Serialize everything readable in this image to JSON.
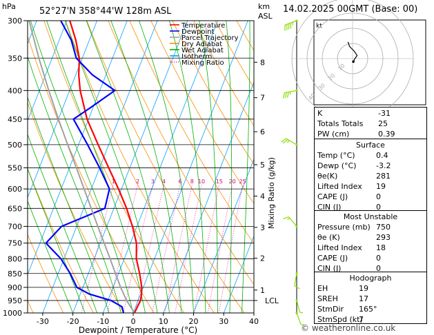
{
  "header": {
    "pressure_unit": "hPa",
    "location": "52°27'N 358°44'W 128m ASL",
    "km_label": "km",
    "asl_label": "ASL",
    "date": "14.02.2025 00GMT (Base: 00)"
  },
  "legend": [
    {
      "label": "Temperature",
      "color": "#ff0000",
      "style": "solid"
    },
    {
      "label": "Dewpoint",
      "color": "#0000ff",
      "style": "solid"
    },
    {
      "label": "Parcel Trajectory",
      "color": "#a0a0a0",
      "style": "solid"
    },
    {
      "label": "Dry Adiabat",
      "color": "#ff8c00",
      "style": "solid"
    },
    {
      "label": "Wet Adiabat",
      "color": "#00b000",
      "style": "solid"
    },
    {
      "label": "Isotherm",
      "color": "#00a0ff",
      "style": "solid"
    },
    {
      "label": "Mixing Ratio",
      "color": "#ff00a0",
      "style": "dotted"
    }
  ],
  "chart_data": {
    "type": "line",
    "title": "52°27'N 358°44'W 128m ASL",
    "xlabel": "Dewpoint / Temperature (°C)",
    "ylabel": "hPa",
    "y2label": "Mixing Ratio (g/kg)",
    "xlim": [
      -35,
      40
    ],
    "ylim": [
      1000,
      300
    ],
    "y_scale": "log",
    "x_ticks": [
      -30,
      -20,
      -10,
      0,
      10,
      20,
      30,
      40
    ],
    "pressure_ticks": [
      300,
      350,
      400,
      450,
      500,
      550,
      600,
      650,
      700,
      750,
      800,
      850,
      900,
      950,
      1000
    ],
    "km_ticks": [
      {
        "km": "1",
        "p": 910
      },
      {
        "km": "2",
        "p": 798
      },
      {
        "km": "3",
        "p": 703
      },
      {
        "km": "4",
        "p": 618
      },
      {
        "km": "5",
        "p": 543
      },
      {
        "km": "6",
        "p": 474
      },
      {
        "km": "7",
        "p": 412
      },
      {
        "km": "8",
        "p": 356
      }
    ],
    "lcl_label": "LCL",
    "lcl_p": 950,
    "mixing_ratio_labels": [
      "1",
      "2",
      "3",
      "4",
      "6",
      "8",
      "10",
      "15",
      "20",
      "25"
    ],
    "mixing_ratio_label_p": 590,
    "series": [
      {
        "name": "Temperature",
        "color": "#ff0000",
        "p": [
          1000,
          975,
          950,
          925,
          900,
          850,
          800,
          750,
          700,
          650,
          600,
          550,
          500,
          450,
          400,
          375,
          350,
          325,
          300
        ],
        "t": [
          0.4,
          0.6,
          0.8,
          0.3,
          -0.5,
          -3.0,
          -6.0,
          -8.0,
          -11.5,
          -15.8,
          -21.0,
          -27.0,
          -33.5,
          -40.5,
          -46.5,
          -49.0,
          -51.0,
          -54.5,
          -59.0
        ]
      },
      {
        "name": "Dewpoint",
        "color": "#0000ff",
        "p": [
          1000,
          975,
          950,
          925,
          900,
          850,
          800,
          750,
          700,
          650,
          600,
          550,
          500,
          450,
          430,
          400,
          375,
          350,
          325,
          300
        ],
        "t": [
          -3.2,
          -4.5,
          -9.0,
          -17.0,
          -22.0,
          -26.0,
          -31.0,
          -38.0,
          -35.0,
          -23.0,
          -24.0,
          -30.0,
          -37.0,
          -45.0,
          -41.0,
          -35.0,
          -44.5,
          -52.0,
          -56.0,
          -62.0
        ]
      },
      {
        "name": "Parcel Trajectory",
        "color": "#a0a0a0",
        "p": [
          1000,
          950,
          900,
          850,
          800,
          750,
          700,
          650,
          600,
          550,
          500,
          450,
          400,
          350,
          300
        ],
        "t": [
          0.4,
          -3.8,
          -7.5,
          -11.0,
          -14.7,
          -18.7,
          -23.0,
          -27.5,
          -32.4,
          -37.7,
          -43.6,
          -50.0,
          -56.9,
          -64.4,
          -72.5
        ]
      }
    ]
  },
  "wind_barbs": [
    {
      "p": 300,
      "dir": 250,
      "spd_kt": 45
    },
    {
      "p": 400,
      "dir": 260,
      "spd_kt": 35
    },
    {
      "p": 500,
      "dir": 300,
      "spd_kt": 25
    },
    {
      "p": 700,
      "dir": 320,
      "spd_kt": 15
    },
    {
      "p": 850,
      "dir": 190,
      "spd_kt": 10
    },
    {
      "p": 950,
      "dir": 165,
      "spd_kt": 8
    },
    {
      "p": 1000,
      "dir": 160,
      "spd_kt": 5
    }
  ],
  "hodograph": {
    "unit": "kt",
    "ring_labels": [
      "10",
      "20",
      "30",
      "40"
    ],
    "trace_u_kt": [
      0.5,
      1.5,
      3.0,
      1.0,
      -2.0,
      -3.0
    ],
    "trace_v_kt": [
      -2.0,
      0.0,
      2.0,
      5.0,
      8.0,
      11.0
    ]
  },
  "indices": [
    {
      "label": "K",
      "value": "-31"
    },
    {
      "label": "Totals Totals",
      "value": "25"
    },
    {
      "label": "PW (cm)",
      "value": "0.39"
    }
  ],
  "surface": {
    "header": "Surface",
    "rows": [
      {
        "label": "Temp (°C)",
        "value": "0.4"
      },
      {
        "label": "Dewp (°C)",
        "value": "-3.2"
      },
      {
        "label": "θe(K)",
        "value": "281"
      },
      {
        "label": "Lifted Index",
        "value": "19"
      },
      {
        "label": "CAPE (J)",
        "value": "0"
      },
      {
        "label": "CIN (J)",
        "value": "0"
      }
    ]
  },
  "most_unstable": {
    "header": "Most Unstable",
    "rows": [
      {
        "label": "Pressure (mb)",
        "value": "750"
      },
      {
        "label": "θe (K)",
        "value": "293"
      },
      {
        "label": "Lifted Index",
        "value": "18"
      },
      {
        "label": "CAPE (J)",
        "value": "0"
      },
      {
        "label": "CIN (J)",
        "value": "0"
      }
    ]
  },
  "hodograph_table": {
    "header": "Hodograph",
    "rows": [
      {
        "label": "EH",
        "value": "19"
      },
      {
        "label": "SREH",
        "value": "17"
      },
      {
        "label": "StmDir",
        "value": "165°"
      },
      {
        "label": "StmSpd (kt)",
        "value": "7"
      }
    ]
  },
  "copyright": "© weatheronline.co.uk"
}
